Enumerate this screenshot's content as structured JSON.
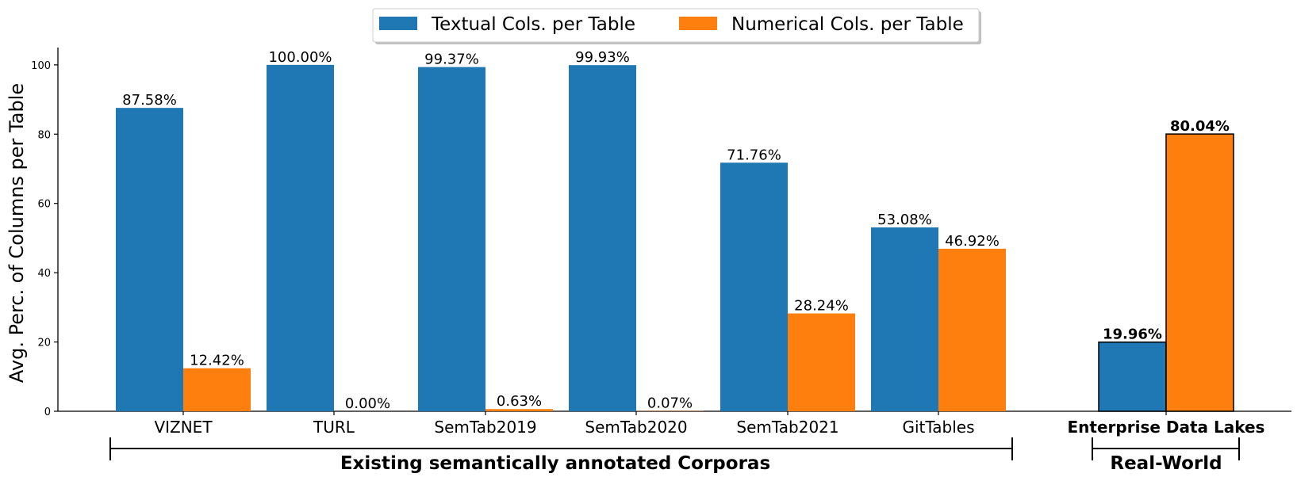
{
  "chart_data": {
    "type": "bar",
    "title": "",
    "xlabel": "",
    "ylabel": "Avg. Perc. of Columns per Table",
    "ylim": [
      0,
      105
    ],
    "yticks": [
      0,
      20,
      40,
      60,
      80,
      100
    ],
    "grid": false,
    "legend_placement": "top-center",
    "categories": [
      "VIZNET",
      "TURL",
      "SemTab2019",
      "SemTab2020",
      "SemTab2021",
      "GitTables",
      "Enterprise Data Lakes"
    ],
    "series": [
      {
        "name": "Textual Cols. per Table",
        "color": "#1f77b4",
        "values": [
          87.58,
          100.0,
          99.37,
          99.93,
          71.76,
          53.08,
          19.96
        ],
        "labels": [
          "87.58%",
          "100.00%",
          "99.37%",
          "99.93%",
          "71.76%",
          "53.08%",
          "19.96%"
        ]
      },
      {
        "name": "Numerical Cols. per Table",
        "color": "#ff7f0e",
        "values": [
          12.42,
          0.0,
          0.63,
          0.07,
          28.24,
          46.92,
          80.04
        ],
        "labels": [
          "12.42%",
          "0.00%",
          "0.63%",
          "0.07%",
          "28.24%",
          "46.92%",
          "80.04%"
        ]
      }
    ],
    "groups": [
      {
        "label": "Existing semantically annotated Corporas",
        "categories": [
          "VIZNET",
          "TURL",
          "SemTab2019",
          "SemTab2020",
          "SemTab2021",
          "GitTables"
        ]
      },
      {
        "label": "Real-World",
        "categories": [
          "Enterprise Data Lakes"
        ]
      }
    ]
  }
}
